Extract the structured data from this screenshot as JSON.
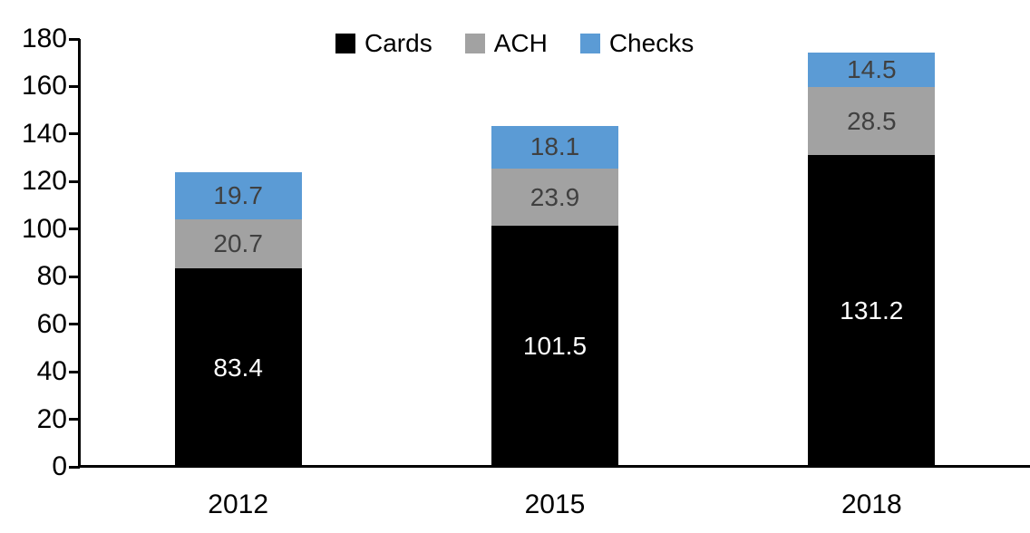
{
  "chart_data": {
    "type": "bar",
    "stacked": true,
    "title": "",
    "xlabel": "",
    "ylabel": "",
    "categories": [
      "2012",
      "2015",
      "2018"
    ],
    "series": [
      {
        "name": "Cards",
        "color": "#000000",
        "label_color": "#ffffff",
        "values": [
          83.4,
          101.5,
          131.2
        ]
      },
      {
        "name": "ACH",
        "color": "#A2A2A2",
        "label_color": "#404040",
        "values": [
          20.7,
          23.9,
          28.5
        ]
      },
      {
        "name": "Checks",
        "color": "#5B9BD5",
        "label_color": "#404040",
        "values": [
          19.7,
          18.1,
          14.5
        ]
      }
    ],
    "totals": [
      123.8,
      143.5,
      174.2
    ],
    "ylim": [
      0,
      180
    ],
    "yticks": [
      0,
      20,
      40,
      60,
      80,
      100,
      120,
      140,
      160,
      180
    ],
    "ytick_step": 20,
    "legend_position": "top-center",
    "legend_labels": [
      "Cards",
      "ACH",
      "Checks"
    ],
    "grid": false,
    "value_labels": true,
    "axis_color": "#000000"
  }
}
